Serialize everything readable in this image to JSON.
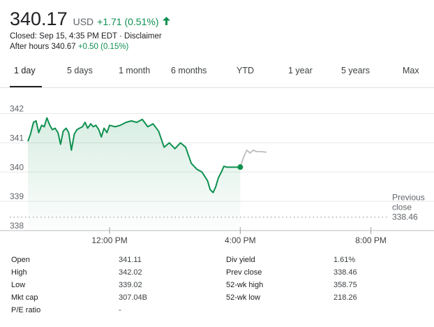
{
  "quote": {
    "price": "340.17",
    "currency": "USD",
    "change": "+1.71 (0.51%)",
    "up_icon": "arrow-up-icon",
    "closed_text": "Closed: Sep 15, 4:35 PM EDT · Disclaimer",
    "after_hours_label": "After hours 340.67",
    "after_hours_change": "+0.50 (0.15%)",
    "positive_color": "#0d904f"
  },
  "tabs": [
    {
      "label": "1 day",
      "active": true
    },
    {
      "label": "5 days"
    },
    {
      "label": "1 month"
    },
    {
      "label": "6 months"
    },
    {
      "label": "YTD"
    },
    {
      "label": "1 year"
    },
    {
      "label": "5 years"
    },
    {
      "label": "Max"
    }
  ],
  "chart_data": {
    "type": "line",
    "y_ticks": [
      338,
      339,
      340,
      341,
      342
    ],
    "ylim": [
      338,
      342.3
    ],
    "x_ticks": [
      "12:00 PM",
      "4:00 PM",
      "8:00 PM"
    ],
    "xlim_hours": [
      9.5,
      20.5
    ],
    "previous_close_label": [
      "Previous",
      "close",
      "338.46"
    ],
    "previous_close": 338.46,
    "line_color": "#0d904f",
    "after_hours_color": "#bdbdbd",
    "regular_session": {
      "x": [
        9.5,
        9.58,
        9.67,
        9.75,
        9.83,
        9.92,
        10.0,
        10.08,
        10.17,
        10.25,
        10.33,
        10.42,
        10.5,
        10.58,
        10.67,
        10.75,
        10.83,
        10.92,
        11.0,
        11.08,
        11.17,
        11.25,
        11.33,
        11.42,
        11.5,
        11.58,
        11.67,
        11.75,
        11.83,
        11.92,
        12.0,
        12.17,
        12.33,
        12.5,
        12.67,
        12.83,
        13.0,
        13.17,
        13.33,
        13.5,
        13.67,
        13.83,
        14.0,
        14.17,
        14.33,
        14.5,
        14.67,
        14.83,
        15.0,
        15.08,
        15.17,
        15.25,
        15.33,
        15.42,
        15.5,
        15.58,
        15.67,
        15.75,
        15.83,
        15.92,
        16.0
      ],
      "y": [
        341.05,
        341.3,
        341.7,
        341.75,
        341.35,
        341.6,
        341.55,
        341.85,
        341.6,
        341.45,
        341.5,
        341.35,
        340.95,
        341.4,
        341.5,
        341.35,
        340.75,
        341.3,
        341.45,
        341.5,
        341.55,
        341.7,
        341.5,
        341.65,
        341.55,
        341.6,
        341.45,
        341.2,
        341.5,
        341.35,
        341.6,
        341.55,
        341.6,
        341.7,
        341.75,
        341.7,
        341.8,
        341.55,
        341.65,
        341.4,
        340.85,
        341.0,
        340.8,
        341.0,
        340.85,
        340.3,
        340.1,
        340.0,
        339.7,
        339.4,
        339.3,
        339.5,
        339.8,
        340.0,
        340.2,
        340.17,
        340.17,
        340.17,
        340.17,
        340.17,
        340.17
      ]
    },
    "after_hours": {
      "x": [
        16.0,
        16.1,
        16.2,
        16.3,
        16.4,
        16.5,
        16.65,
        16.8
      ],
      "y": [
        340.17,
        340.5,
        340.75,
        340.65,
        340.75,
        340.7,
        340.7,
        340.68
      ]
    }
  },
  "stats": {
    "left": [
      {
        "label": "Open",
        "value": "341.11"
      },
      {
        "label": "High",
        "value": "342.02"
      },
      {
        "label": "Low",
        "value": "339.02"
      },
      {
        "label": "Mkt cap",
        "value": "307.04B"
      },
      {
        "label": "P/E ratio",
        "value": "-"
      }
    ],
    "right": [
      {
        "label": "Div yield",
        "value": "1.61%"
      },
      {
        "label": "Prev close",
        "value": "338.46"
      },
      {
        "label": "52-wk high",
        "value": "358.75"
      },
      {
        "label": "52-wk low",
        "value": "218.26"
      }
    ]
  }
}
